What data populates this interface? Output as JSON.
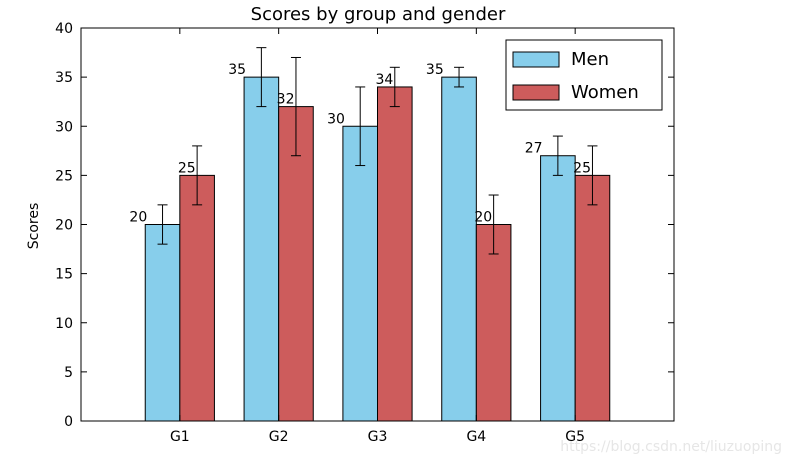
{
  "chart_data": {
    "type": "bar",
    "title": "Scores by group and gender",
    "xlabel": "",
    "ylabel": "Scores",
    "categories": [
      "G1",
      "G2",
      "G3",
      "G4",
      "G5"
    ],
    "ylim": [
      0,
      40
    ],
    "yticks": [
      0,
      5,
      10,
      15,
      20,
      25,
      30,
      35,
      40
    ],
    "grid": false,
    "legend_position": "top-right",
    "series": [
      {
        "name": "Men",
        "color": "#87CEEB",
        "values": [
          20,
          35,
          30,
          35,
          27
        ],
        "errors": [
          2,
          3,
          4,
          1,
          2
        ],
        "labels": [
          "20",
          "35",
          "30",
          "35",
          "27"
        ]
      },
      {
        "name": "Women",
        "color": "#CD5C5C",
        "values": [
          25,
          32,
          34,
          20,
          25
        ],
        "errors": [
          3,
          5,
          2,
          3,
          3
        ],
        "labels": [
          "25",
          "32",
          "34",
          "20",
          "25"
        ]
      }
    ]
  },
  "watermark": "https://blog.csdn.net/liuzuoping"
}
